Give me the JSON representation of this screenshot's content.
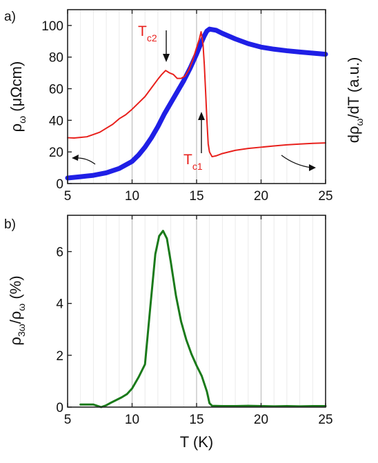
{
  "panel_labels": [
    "a)",
    "b)"
  ],
  "chart_data": [
    {
      "type": "line",
      "panel": "a)",
      "xlim": [
        5,
        25
      ],
      "ylim": [
        0,
        110
      ],
      "x_ticks": [
        5,
        10,
        15,
        20,
        25
      ],
      "y_ticks": [
        0,
        20,
        40,
        60,
        80,
        100
      ],
      "xlabel": "",
      "ylabel_parts": {
        "base": "ρ",
        "sub": "ω",
        "unit": " (μΩcm)"
      },
      "ylabel2_parts": {
        "pre": "dρ",
        "sub": "ω",
        "post": "/dT (a.u.)"
      },
      "grid": "vertical minor",
      "annotations": [
        {
          "main": "T",
          "sub": "c2",
          "x": 12.6,
          "y": 82
        },
        {
          "main": "T",
          "sub": "c1",
          "x": 15.3,
          "y": 12
        }
      ],
      "series": [
        {
          "color": "#1f1fe6",
          "axis": "left",
          "x": [
            5,
            6,
            7,
            8,
            9,
            10,
            10.5,
            11,
            11.5,
            12,
            12.5,
            13,
            13.5,
            14,
            14.5,
            15,
            15.3,
            15.6,
            15.8,
            16,
            16.5,
            17,
            18,
            19,
            20,
            21,
            22,
            23,
            24,
            25
          ],
          "y": [
            3.5,
            4.3,
            5.2,
            6.8,
            9.5,
            14,
            18,
            23,
            29,
            36,
            44,
            51,
            58,
            65,
            73,
            82,
            88,
            93.5,
            96.5,
            97.7,
            97,
            95,
            91.5,
            88.5,
            86.3,
            85,
            84,
            83.2,
            82.5,
            81.8
          ]
        },
        {
          "color": "#e8201c",
          "axis": "right",
          "x": [
            5,
            5.5,
            6,
            6.5,
            7,
            7.5,
            8,
            8.5,
            9,
            9.5,
            10,
            10.5,
            11,
            11.5,
            12,
            12.3,
            12.6,
            12.9,
            13.2,
            13.5,
            13.8,
            14.1,
            14.4,
            14.7,
            15,
            15.2,
            15.35,
            15.5,
            15.6,
            15.7,
            15.8,
            15.9,
            16.0,
            16.2,
            16.5,
            17,
            18,
            19,
            20,
            21,
            22,
            23,
            24,
            25
          ],
          "y": [
            29,
            28.8,
            29.2,
            29.6,
            31,
            32.5,
            35,
            37.5,
            41,
            43.5,
            47,
            51,
            55,
            60.5,
            66,
            69,
            71.5,
            70,
            69,
            66.5,
            66.5,
            68,
            72,
            78,
            86,
            91,
            96,
            88,
            75,
            58,
            40,
            25,
            20,
            17,
            17.5,
            19,
            21,
            22.2,
            23,
            23.8,
            24.5,
            25,
            25.4,
            25.7
          ]
        }
      ]
    },
    {
      "type": "line",
      "panel": "b)",
      "xlim": [
        5,
        25
      ],
      "ylim": [
        0,
        7.4
      ],
      "x_ticks": [
        5,
        10,
        15,
        20,
        25
      ],
      "y_ticks": [
        0,
        2,
        4,
        6
      ],
      "xlabel": "T (K)",
      "ylabel_parts": {
        "pre": "ρ",
        "sub1": "3ω",
        "mid": "/ρ",
        "sub2": "ω",
        "post": " (%)"
      },
      "grid": "vertical major and minor",
      "series": [
        {
          "color": "#1a7a1a",
          "x": [
            6,
            6.5,
            7,
            7.3,
            7.6,
            8,
            8.4,
            8.8,
            9.2,
            9.6,
            10,
            10.5,
            11,
            11.4,
            11.8,
            12.1,
            12.4,
            12.7,
            13,
            13.4,
            13.8,
            14.2,
            14.6,
            15,
            15.4,
            15.8,
            16,
            16.2,
            17,
            18,
            19,
            20,
            21,
            22,
            23,
            24,
            25
          ],
          "y": [
            0.1,
            0.1,
            0.1,
            0.05,
            0.0,
            0.07,
            0.18,
            0.28,
            0.38,
            0.5,
            0.72,
            1.15,
            1.65,
            3.8,
            5.9,
            6.6,
            6.8,
            6.5,
            5.6,
            4.3,
            3.3,
            2.6,
            2.05,
            1.6,
            1.2,
            0.6,
            0.15,
            0.05,
            0.04,
            0.04,
            0.05,
            0.04,
            0.03,
            0.04,
            0.03,
            0.04,
            0.04
          ]
        }
      ]
    }
  ]
}
